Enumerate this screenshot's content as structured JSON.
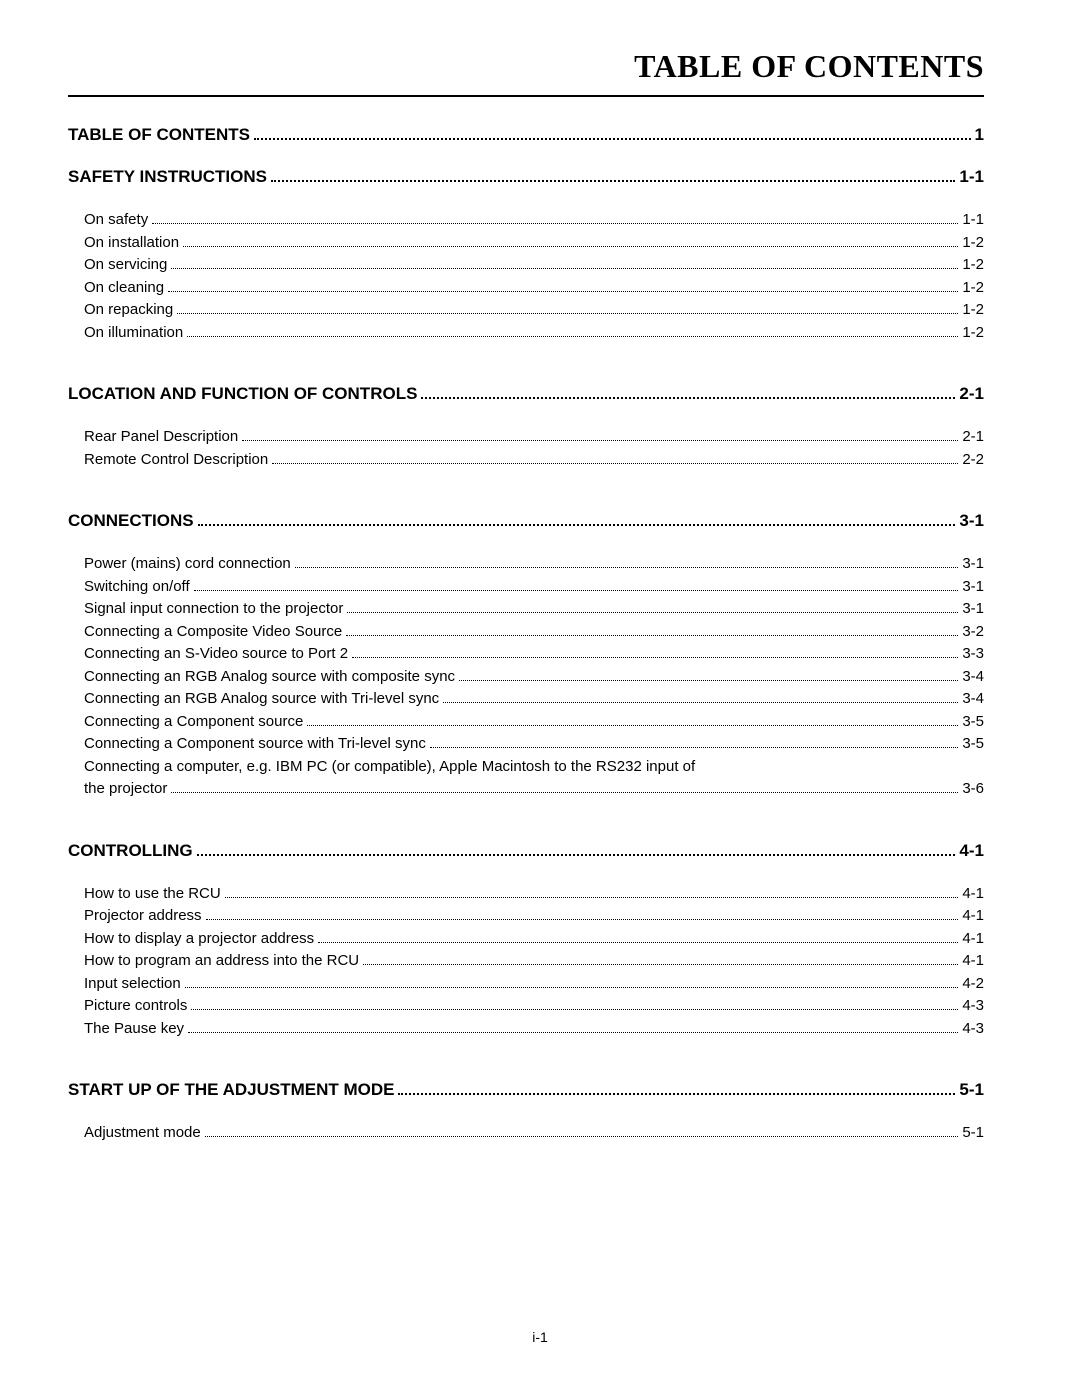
{
  "title": "TABLE OF CONTENTS",
  "footer": "i-1",
  "typography": {
    "title_font": "Times New Roman",
    "title_size_pt": 24,
    "title_weight": "bold",
    "chapter_size_pt": 13,
    "chapter_weight": "bold",
    "sub_size_pt": 11,
    "body_font": "Arial",
    "text_color": "#000000",
    "background": "#ffffff"
  },
  "sections": [
    {
      "title": "TABLE OF CONTENTS",
      "page": "1",
      "items": []
    },
    {
      "title": "SAFETY INSTRUCTIONS",
      "page": "1-1",
      "join_prev": true,
      "items": [
        {
          "label": "On safety",
          "page": "1-1"
        },
        {
          "label": "On installation",
          "page": "1-2"
        },
        {
          "label": "On servicing",
          "page": "1-2"
        },
        {
          "label": "On cleaning",
          "page": "1-2"
        },
        {
          "label": "On repacking",
          "page": "1-2"
        },
        {
          "label": "On illumination",
          "page": "1-2"
        }
      ]
    },
    {
      "title": "LOCATION AND FUNCTION OF CONTROLS",
      "page": "2-1",
      "items": [
        {
          "label": "Rear Panel Description",
          "page": "2-1"
        },
        {
          "label": "Remote Control Description",
          "page": "2-2"
        }
      ]
    },
    {
      "title": "CONNECTIONS",
      "page": "3-1",
      "items": [
        {
          "label": "Power (mains) cord connection",
          "page": "3-1"
        },
        {
          "label": "Switching on/off",
          "page": "3-1"
        },
        {
          "label": "Signal input connection to the projector",
          "page": "3-1"
        },
        {
          "label": "Connecting a Composite Video Source",
          "page": "3-2"
        },
        {
          "label": "Connecting an S-Video source to Port 2",
          "page": "3-3"
        },
        {
          "label": "Connecting an RGB Analog source with composite sync",
          "page": "3-4"
        },
        {
          "label": "Connecting an RGB Analog source with Tri-level sync",
          "page": "3-4"
        },
        {
          "label": "Connecting a Component source",
          "page": "3-5"
        },
        {
          "label": "Connecting a Component source with Tri-level sync",
          "page": "3-5"
        },
        {
          "label_wrap1": "Connecting a computer, e.g. IBM PC (or compatible), Apple Macintosh to the RS232 input of",
          "label_wrap2": "the projector",
          "page": "3-6",
          "wrap": true
        }
      ]
    },
    {
      "title": "CONTROLLING",
      "page": "4-1",
      "items": [
        {
          "label": "How to use the RCU",
          "page": "4-1"
        },
        {
          "label": "Projector address",
          "page": "4-1"
        },
        {
          "label": "How to display a projector address",
          "page": "4-1"
        },
        {
          "label": "How to program an address into the RCU",
          "page": "4-1"
        },
        {
          "label": "Input selection",
          "page": "4-2"
        },
        {
          "label": "Picture controls",
          "page": "4-3"
        },
        {
          "label": "The Pause key",
          "page": "4-3"
        }
      ]
    },
    {
      "title": "START UP OF THE ADJUSTMENT MODE",
      "page": "5-1",
      "items": [
        {
          "label": "Adjustment mode",
          "page": "5-1"
        }
      ]
    }
  ]
}
